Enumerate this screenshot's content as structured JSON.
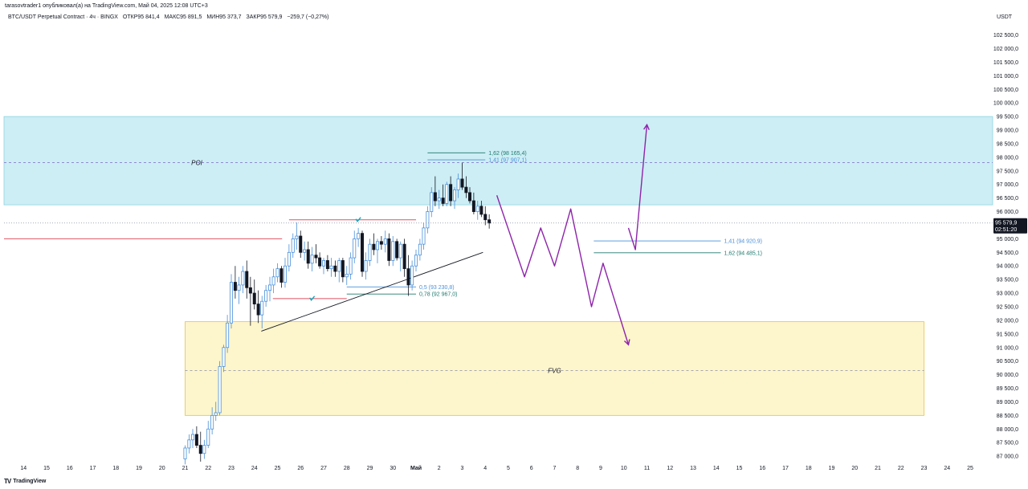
{
  "header": {
    "publish_text": "tarasovtrader1 опубликовал(а) на TradingView.com, Май 04, 2025 12:08 UTC+3"
  },
  "symbol_info": {
    "title": "BTC/USDT Perpetual Contract · 4ч · BINGX",
    "open": "ОТКР95 841,4",
    "high": "МАКС95 891,5",
    "low": "МИН95 373,7",
    "close": "ЗАКР95 579,9",
    "change": "−259,7 (−0,27%)"
  },
  "currency": "USDT",
  "footer": {
    "logo_mark": "TV",
    "logo_text": "TradingView"
  },
  "colors": {
    "bull": "#4a90d9",
    "bear": "#131722",
    "poi_zone": "#cdeef5",
    "fvg_zone": "#fdf5cc",
    "fvg_border": "#e3c44a",
    "projection": "#8e24aa",
    "fib_blue": "#4a90d9",
    "fib_teal": "#1f7a6e",
    "support_red": "#e05262",
    "price_label_bg": "#131722"
  },
  "chart_data": {
    "type": "candlestick",
    "y_axis": {
      "min": 86700,
      "max": 103000,
      "ticks": [
        102500,
        102000,
        101500,
        101000,
        100500,
        100000,
        99500,
        99000,
        98500,
        98000,
        97500,
        97000,
        96500,
        96000,
        95500,
        95000,
        94500,
        94000,
        93500,
        93000,
        92500,
        92000,
        91500,
        91000,
        90500,
        90000,
        89500,
        89000,
        88500,
        88000,
        87500,
        87000
      ],
      "tick_labels": [
        "102 500,0",
        "102 000,0",
        "101 500,0",
        "101 000,0",
        "100 500,0",
        "100 000,0",
        "99 500,0",
        "99 000,0",
        "98 500,0",
        "98 000,0",
        "97 500,0",
        "97 000,0",
        "96 500,0",
        "96 000,0",
        "95 500,0",
        "95 000,0",
        "94 500,0",
        "94 000,0",
        "93 500,0",
        "93 000,0",
        "92 500,0",
        "92 000,0",
        "91 500,0",
        "91 000,0",
        "90 500,0",
        "90 000,0",
        "89 500,0",
        "89 000,0",
        "88 500,0",
        "88 000,0",
        "87 500,0",
        "87 000,0"
      ]
    },
    "x_axis": {
      "labels": [
        "14",
        "15",
        "16",
        "17",
        "18",
        "19",
        "20",
        "21",
        "22",
        "23",
        "24",
        "25",
        "26",
        "27",
        "28",
        "29",
        "30",
        "Май",
        "2",
        "3",
        "4",
        "5",
        "6",
        "7",
        "8",
        "9",
        "10",
        "11",
        "12",
        "13",
        "14",
        "15",
        "16",
        "17",
        "18",
        "19",
        "20",
        "21",
        "22",
        "23",
        "24",
        "25"
      ],
      "label_day_offsets": [
        -7,
        -6,
        -5,
        -4,
        -3,
        -2,
        -1,
        0,
        1,
        2,
        3,
        4,
        5,
        6,
        7,
        8,
        9,
        10,
        11,
        12,
        13,
        14,
        15,
        16,
        17,
        18,
        19,
        20,
        21,
        22,
        23,
        24,
        25,
        26,
        27,
        28,
        29,
        30,
        31,
        32,
        33,
        34
      ]
    },
    "candles_4h": [
      {
        "d": 0.0,
        "o": 86900,
        "h": 87400,
        "l": 86700,
        "c": 87300
      },
      {
        "d": 0.17,
        "o": 87300,
        "h": 87800,
        "l": 87100,
        "c": 87600
      },
      {
        "d": 0.33,
        "o": 87600,
        "h": 88000,
        "l": 87300,
        "c": 87800
      },
      {
        "d": 0.5,
        "o": 87800,
        "h": 88100,
        "l": 87300,
        "c": 87400
      },
      {
        "d": 0.67,
        "o": 87400,
        "h": 87900,
        "l": 86800,
        "c": 87100
      },
      {
        "d": 0.83,
        "o": 87100,
        "h": 87600,
        "l": 86900,
        "c": 87400
      },
      {
        "d": 1.0,
        "o": 87400,
        "h": 88300,
        "l": 87300,
        "c": 88000
      },
      {
        "d": 1.17,
        "o": 88000,
        "h": 88800,
        "l": 87800,
        "c": 88500
      },
      {
        "d": 1.33,
        "o": 88500,
        "h": 89000,
        "l": 88300,
        "c": 88600
      },
      {
        "d": 1.5,
        "o": 88600,
        "h": 90500,
        "l": 88500,
        "c": 90300
      },
      {
        "d": 1.67,
        "o": 90300,
        "h": 91100,
        "l": 90100,
        "c": 91000
      },
      {
        "d": 1.83,
        "o": 91000,
        "h": 92200,
        "l": 90800,
        "c": 91900
      },
      {
        "d": 2.0,
        "o": 91900,
        "h": 93700,
        "l": 91700,
        "c": 93400
      },
      {
        "d": 2.17,
        "o": 93400,
        "h": 94000,
        "l": 92800,
        "c": 93100
      },
      {
        "d": 2.33,
        "o": 93100,
        "h": 93600,
        "l": 92600,
        "c": 93300
      },
      {
        "d": 2.5,
        "o": 93300,
        "h": 94000,
        "l": 93000,
        "c": 93800
      },
      {
        "d": 2.67,
        "o": 93800,
        "h": 94200,
        "l": 92800,
        "c": 93200
      },
      {
        "d": 2.83,
        "o": 93200,
        "h": 93600,
        "l": 91800,
        "c": 93000
      },
      {
        "d": 3.0,
        "o": 93000,
        "h": 93500,
        "l": 92400,
        "c": 92600
      },
      {
        "d": 3.17,
        "o": 92600,
        "h": 93100,
        "l": 91900,
        "c": 92200
      },
      {
        "d": 3.33,
        "o": 92200,
        "h": 92900,
        "l": 91700,
        "c": 92700
      },
      {
        "d": 3.5,
        "o": 92700,
        "h": 93300,
        "l": 92500,
        "c": 93100
      },
      {
        "d": 3.67,
        "o": 93100,
        "h": 93600,
        "l": 92700,
        "c": 93300
      },
      {
        "d": 3.83,
        "o": 93300,
        "h": 93900,
        "l": 93000,
        "c": 93600
      },
      {
        "d": 4.0,
        "o": 93600,
        "h": 94100,
        "l": 93400,
        "c": 93900
      },
      {
        "d": 4.17,
        "o": 93900,
        "h": 94000,
        "l": 93200,
        "c": 93400
      },
      {
        "d": 4.33,
        "o": 93400,
        "h": 94300,
        "l": 93200,
        "c": 94000
      },
      {
        "d": 4.5,
        "o": 94000,
        "h": 94800,
        "l": 93800,
        "c": 94500
      },
      {
        "d": 4.67,
        "o": 94500,
        "h": 95200,
        "l": 94300,
        "c": 95000
      },
      {
        "d": 4.83,
        "o": 95000,
        "h": 95600,
        "l": 94600,
        "c": 95100
      },
      {
        "d": 5.0,
        "o": 95100,
        "h": 95300,
        "l": 94300,
        "c": 94500
      },
      {
        "d": 5.17,
        "o": 94500,
        "h": 94900,
        "l": 94200,
        "c": 94600
      },
      {
        "d": 5.33,
        "o": 94600,
        "h": 94900,
        "l": 93900,
        "c": 94100
      },
      {
        "d": 5.5,
        "o": 94100,
        "h": 94700,
        "l": 93800,
        "c": 94400
      },
      {
        "d": 5.67,
        "o": 94400,
        "h": 94800,
        "l": 94100,
        "c": 94300
      },
      {
        "d": 5.83,
        "o": 94300,
        "h": 94500,
        "l": 93900,
        "c": 94000
      },
      {
        "d": 6.0,
        "o": 94000,
        "h": 94300,
        "l": 93700,
        "c": 94200
      },
      {
        "d": 6.17,
        "o": 94200,
        "h": 94400,
        "l": 93800,
        "c": 93900
      },
      {
        "d": 6.33,
        "o": 93900,
        "h": 94300,
        "l": 93600,
        "c": 94000
      },
      {
        "d": 6.5,
        "o": 94000,
        "h": 94200,
        "l": 93600,
        "c": 93800
      },
      {
        "d": 6.67,
        "o": 93800,
        "h": 94300,
        "l": 93400,
        "c": 94200
      },
      {
        "d": 6.83,
        "o": 94200,
        "h": 94300,
        "l": 93400,
        "c": 93600
      },
      {
        "d": 7.0,
        "o": 93600,
        "h": 94000,
        "l": 93300,
        "c": 93700
      },
      {
        "d": 7.17,
        "o": 93700,
        "h": 94500,
        "l": 93500,
        "c": 94300
      },
      {
        "d": 7.33,
        "o": 94300,
        "h": 95300,
        "l": 94100,
        "c": 95000
      },
      {
        "d": 7.5,
        "o": 95000,
        "h": 95400,
        "l": 94700,
        "c": 95200
      },
      {
        "d": 7.67,
        "o": 95200,
        "h": 95300,
        "l": 93600,
        "c": 93800
      },
      {
        "d": 7.83,
        "o": 93800,
        "h": 94500,
        "l": 93500,
        "c": 94200
      },
      {
        "d": 8.0,
        "o": 94200,
        "h": 95000,
        "l": 94000,
        "c": 94800
      },
      {
        "d": 8.17,
        "o": 94800,
        "h": 95200,
        "l": 94400,
        "c": 94600
      },
      {
        "d": 8.33,
        "o": 94600,
        "h": 95000,
        "l": 94100,
        "c": 94900
      },
      {
        "d": 8.5,
        "o": 94900,
        "h": 95100,
        "l": 94600,
        "c": 94800
      },
      {
        "d": 8.67,
        "o": 94800,
        "h": 95300,
        "l": 94500,
        "c": 95000
      },
      {
        "d": 8.83,
        "o": 95000,
        "h": 95200,
        "l": 94000,
        "c": 94200
      },
      {
        "d": 9.0,
        "o": 94200,
        "h": 95100,
        "l": 94000,
        "c": 94900
      },
      {
        "d": 9.17,
        "o": 94900,
        "h": 95000,
        "l": 94200,
        "c": 94300
      },
      {
        "d": 9.33,
        "o": 94300,
        "h": 94900,
        "l": 93800,
        "c": 94800
      },
      {
        "d": 9.5,
        "o": 94800,
        "h": 95000,
        "l": 93600,
        "c": 93900
      },
      {
        "d": 9.67,
        "o": 93900,
        "h": 94400,
        "l": 92900,
        "c": 93300
      },
      {
        "d": 9.83,
        "o": 93300,
        "h": 94200,
        "l": 93100,
        "c": 94000
      },
      {
        "d": 10.0,
        "o": 94000,
        "h": 94600,
        "l": 93800,
        "c": 94400
      },
      {
        "d": 10.17,
        "o": 94400,
        "h": 95000,
        "l": 94200,
        "c": 94800
      },
      {
        "d": 10.33,
        "o": 94800,
        "h": 95600,
        "l": 94600,
        "c": 95400
      },
      {
        "d": 10.5,
        "o": 95400,
        "h": 96200,
        "l": 95200,
        "c": 96000
      },
      {
        "d": 10.67,
        "o": 96000,
        "h": 96900,
        "l": 95800,
        "c": 96700
      },
      {
        "d": 10.83,
        "o": 96700,
        "h": 97300,
        "l": 96200,
        "c": 96400
      },
      {
        "d": 11.0,
        "o": 96400,
        "h": 96800,
        "l": 96100,
        "c": 96500
      },
      {
        "d": 11.17,
        "o": 96500,
        "h": 97000,
        "l": 96200,
        "c": 96300
      },
      {
        "d": 11.33,
        "o": 96300,
        "h": 97100,
        "l": 96200,
        "c": 97000
      },
      {
        "d": 11.5,
        "o": 97000,
        "h": 97300,
        "l": 96200,
        "c": 96400
      },
      {
        "d": 11.67,
        "o": 96400,
        "h": 96900,
        "l": 96100,
        "c": 96800
      },
      {
        "d": 11.83,
        "o": 96800,
        "h": 97400,
        "l": 96500,
        "c": 97200
      },
      {
        "d": 12.0,
        "o": 97200,
        "h": 97800,
        "l": 96800,
        "c": 96900
      },
      {
        "d": 12.17,
        "o": 96900,
        "h": 97300,
        "l": 96500,
        "c": 96700
      },
      {
        "d": 12.33,
        "o": 96700,
        "h": 96900,
        "l": 96300,
        "c": 96400
      },
      {
        "d": 12.5,
        "o": 96400,
        "h": 96700,
        "l": 95900,
        "c": 96000
      },
      {
        "d": 12.67,
        "o": 96000,
        "h": 96400,
        "l": 95700,
        "c": 96200
      },
      {
        "d": 12.83,
        "o": 96200,
        "h": 96400,
        "l": 95800,
        "c": 95900
      },
      {
        "d": 13.0,
        "o": 95900,
        "h": 96200,
        "l": 95500,
        "c": 95700
      },
      {
        "d": 13.17,
        "o": 95700,
        "h": 95900,
        "l": 95374,
        "c": 95580
      }
    ],
    "zones": [
      {
        "name": "POI",
        "low": 96250,
        "high": 99500,
        "mid": 97800,
        "from_d": -8,
        "to_d": 36
      },
      {
        "name": "FVG",
        "low": 88500,
        "high": 91950,
        "mid": 90150,
        "from_d": 0,
        "to_d": 32
      }
    ],
    "fib_levels": [
      {
        "label": "1,62 (98 165,4)",
        "price": 98165.4,
        "from_d": 10.5,
        "to_d": 13.0,
        "color": "#1f7a6e"
      },
      {
        "label": "1,41 (97 907,1)",
        "price": 97907.1,
        "from_d": 10.5,
        "to_d": 13.0,
        "color": "#4a90d9"
      },
      {
        "label": "0,5 (93 230,8)",
        "price": 93230.8,
        "from_d": 7.0,
        "to_d": 10.0,
        "color": "#4a90d9"
      },
      {
        "label": "0,78 (92 967,0)",
        "price": 92967.0,
        "from_d": 7.0,
        "to_d": 10.0,
        "color": "#1f7a6e"
      },
      {
        "label": "1,41 (94 920,9)",
        "price": 94920.9,
        "from_d": 17.7,
        "to_d": 23.2,
        "color": "#4a90d9"
      },
      {
        "label": "1,62 (94 485,1)",
        "price": 94485.1,
        "from_d": 17.7,
        "to_d": 23.2,
        "color": "#1f7a6e"
      }
    ],
    "horizontal_lines": [
      {
        "price": 95000,
        "from_d": -8,
        "to_d": 4.2,
        "color": "#e05262"
      },
      {
        "price": 95700,
        "from_d": 4.5,
        "to_d": 10.0,
        "color": "#e05262"
      },
      {
        "price": 92800,
        "from_d": 3.8,
        "to_d": 7.0,
        "color": "#e05262"
      }
    ],
    "check_marks": [
      {
        "d": 7.5,
        "price": 95700
      },
      {
        "d": 5.5,
        "price": 92800
      }
    ],
    "trendline": {
      "points": [
        {
          "d": 3.3,
          "price": 91600
        },
        {
          "d": 12.9,
          "price": 94500
        }
      ]
    },
    "projection_paths": [
      {
        "points": [
          {
            "d": 13.5,
            "price": 96600
          },
          {
            "d": 14.7,
            "price": 93600
          },
          {
            "d": 15.4,
            "price": 95400
          },
          {
            "d": 16.0,
            "price": 94000
          },
          {
            "d": 16.7,
            "price": 96100
          },
          {
            "d": 17.6,
            "price": 92500
          },
          {
            "d": 18.1,
            "price": 94100
          },
          {
            "d": 19.2,
            "price": 91100
          }
        ]
      },
      {
        "points": [
          {
            "d": 19.2,
            "price": 95400
          },
          {
            "d": 19.5,
            "price": 94600
          },
          {
            "d": 20.0,
            "price": 99200
          }
        ]
      }
    ],
    "last_price": {
      "price": 95579.9,
      "label": "95 579,9",
      "countdown": "02:51:20"
    }
  }
}
